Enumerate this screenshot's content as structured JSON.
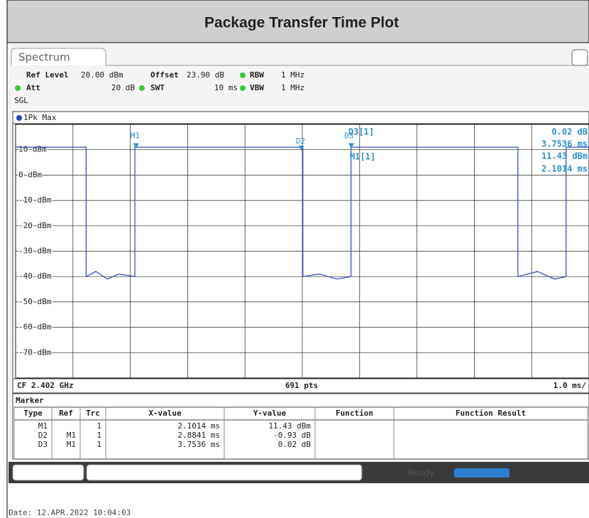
{
  "title": "Package Transfer Time Plot",
  "tab": "Spectrum",
  "settings": {
    "ref_level_label": "Ref Level",
    "ref_level": "20.00 dBm",
    "offset_label": "Offset",
    "offset": "23.90 dB",
    "rbw_label": "RBW",
    "rbw": "1 MHz",
    "att_label": "Att",
    "att": "20 dB",
    "swt_label": "SWT",
    "swt": "10 ms",
    "vbw_label": "VBW",
    "vbw": "1 MHz",
    "mode": "SGL"
  },
  "chart_data": {
    "type": "line",
    "trace_label": "1Pk Max",
    "x": [
      0,
      1.23,
      1.23,
      1.4,
      1.6,
      1.8,
      2.08,
      2.08,
      5.01,
      5.01,
      5.3,
      5.6,
      5.85,
      5.85,
      8.76,
      8.76,
      9.1,
      9.4,
      9.6,
      9.6,
      10
    ],
    "series": [
      {
        "name": "1Pk Max",
        "color": "#3b4fc4",
        "values": [
          11,
          11,
          -40,
          -38,
          -41,
          -39,
          -40,
          11,
          11,
          -40,
          -39,
          -41,
          -40,
          11,
          11,
          -40,
          -38,
          -41,
          -40,
          11,
          11
        ]
      }
    ],
    "xlim": [
      0,
      10
    ],
    "xticks": [
      0,
      1,
      2,
      3,
      4,
      5,
      6,
      7,
      8,
      9,
      10
    ],
    "ylim": [
      -80,
      20
    ],
    "yticks": [
      {
        "value": 10,
        "label": "10 dBm"
      },
      {
        "value": 0,
        "label": "0 dBm"
      },
      {
        "value": -10,
        "label": "-10 dBm"
      },
      {
        "value": -20,
        "label": "-20 dBm"
      },
      {
        "value": -30,
        "label": "-30 dBm"
      },
      {
        "value": -40,
        "label": "-40 dBm"
      },
      {
        "value": -50,
        "label": "-50 dBm"
      },
      {
        "value": -60,
        "label": "-60 dBm"
      },
      {
        "value": -70,
        "label": "-70 dBm"
      }
    ],
    "grid": true,
    "markers": [
      {
        "name": "M1",
        "x": 2.1014,
        "y": 11.43
      },
      {
        "name": "D2",
        "x": 4.9855,
        "y": 10.5
      },
      {
        "name": "D3",
        "x": 5.855,
        "y": 11.45
      }
    ],
    "readouts": [
      "D3[1]",
      "0.02 dB",
      "3.7536 ms",
      "M1[1]",
      "11.43 dBm",
      "2.1014 ms"
    ],
    "center_freq": "CF 2.402 GHz",
    "points": "691 pts",
    "span": "1.0 ms/"
  },
  "marker_table": {
    "title": "Marker",
    "columns": [
      "Type",
      "Ref",
      "Trc",
      "X-value",
      "Y-value",
      "Function",
      "Function Result"
    ],
    "rows": [
      {
        "Type": "M1",
        "Trc": "1",
        "X-value": "2.1014 ms",
        "Y-value": "11.43 dBm"
      },
      {
        "Type": "D2",
        "Ref": "M1",
        "Trc": "1",
        "X-value": "2.8841 ms",
        "Y-value": "-0.93 dB"
      },
      {
        "Type": "D3",
        "Ref": "M1",
        "Trc": "1",
        "X-value": "3.7536 ms",
        "Y-value": "0.02 dB"
      }
    ]
  },
  "status": "Ready",
  "date": "Date: 12.APR.2022  10:04:03"
}
